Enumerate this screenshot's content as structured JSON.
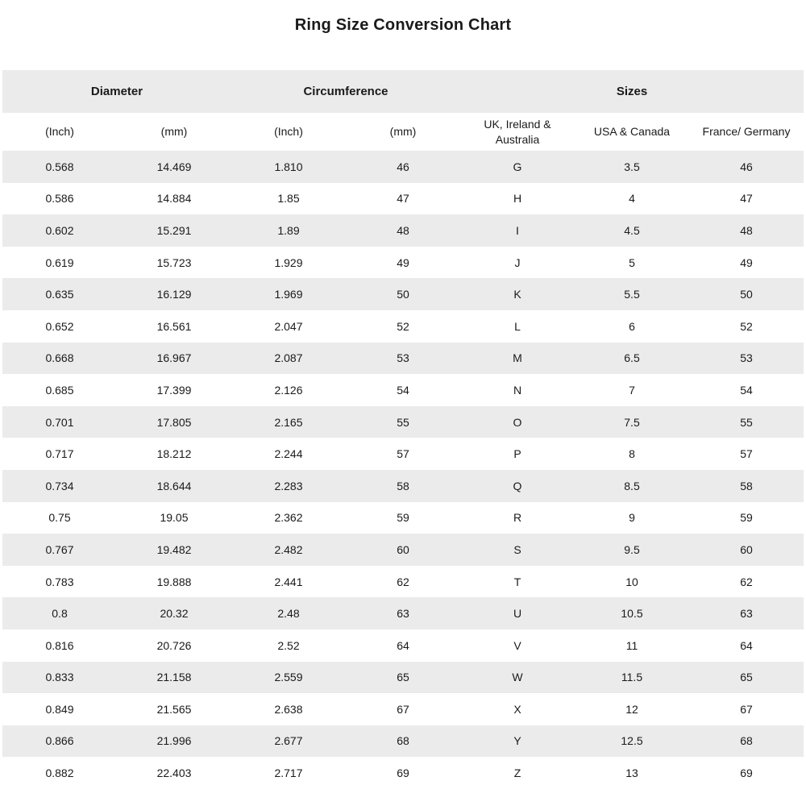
{
  "page": {
    "title": "Ring Size Conversion Chart"
  },
  "colors": {
    "stripe": "#ebebeb",
    "text": "#1a1a1a",
    "background": "#ffffff"
  },
  "chart_data": {
    "type": "table",
    "title": "Ring Size Conversion Chart",
    "group_headers": [
      {
        "label": "Diameter",
        "span": 2
      },
      {
        "label": "Circumference",
        "span": 2
      },
      {
        "label": "Sizes",
        "span": 3
      }
    ],
    "columns": [
      "(Inch)",
      "(mm)",
      "(Inch)",
      "(mm)",
      "UK, Ireland & Australia",
      "USA & Canada",
      "France/ Germany"
    ],
    "rows": [
      [
        "0.568",
        "14.469",
        "1.810",
        "46",
        "G",
        "3.5",
        "46"
      ],
      [
        "0.586",
        "14.884",
        "1.85",
        "47",
        "H",
        "4",
        "47"
      ],
      [
        "0.602",
        "15.291",
        "1.89",
        "48",
        "I",
        "4.5",
        "48"
      ],
      [
        "0.619",
        "15.723",
        "1.929",
        "49",
        "J",
        "5",
        "49"
      ],
      [
        "0.635",
        "16.129",
        "1.969",
        "50",
        "K",
        "5.5",
        "50"
      ],
      [
        "0.652",
        "16.561",
        "2.047",
        "52",
        "L",
        "6",
        "52"
      ],
      [
        "0.668",
        "16.967",
        "2.087",
        "53",
        "M",
        "6.5",
        "53"
      ],
      [
        "0.685",
        "17.399",
        "2.126",
        "54",
        "N",
        "7",
        "54"
      ],
      [
        "0.701",
        "17.805",
        "2.165",
        "55",
        "O",
        "7.5",
        "55"
      ],
      [
        "0.717",
        "18.212",
        "2.244",
        "57",
        "P",
        "8",
        "57"
      ],
      [
        "0.734",
        "18.644",
        "2.283",
        "58",
        "Q",
        "8.5",
        "58"
      ],
      [
        "0.75",
        "19.05",
        "2.362",
        "59",
        "R",
        "9",
        "59"
      ],
      [
        "0.767",
        "19.482",
        "2.482",
        "60",
        "S",
        "9.5",
        "60"
      ],
      [
        "0.783",
        "19.888",
        "2.441",
        "62",
        "T",
        "10",
        "62"
      ],
      [
        "0.8",
        "20.32",
        "2.48",
        "63",
        "U",
        "10.5",
        "63"
      ],
      [
        "0.816",
        "20.726",
        "2.52",
        "64",
        "V",
        "11",
        "64"
      ],
      [
        "0.833",
        "21.158",
        "2.559",
        "65",
        "W",
        "11.5",
        "65"
      ],
      [
        "0.849",
        "21.565",
        "2.638",
        "67",
        "X",
        "12",
        "67"
      ],
      [
        "0.866",
        "21.996",
        "2.677",
        "68",
        "Y",
        "12.5",
        "68"
      ],
      [
        "0.882",
        "22.403",
        "2.717",
        "69",
        "Z",
        "13",
        "69"
      ]
    ]
  }
}
